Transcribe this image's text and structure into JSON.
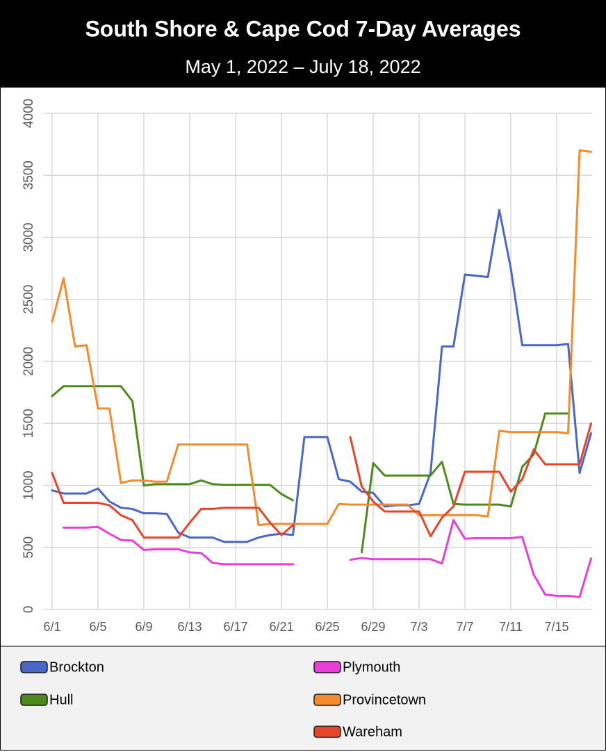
{
  "chart_data": {
    "type": "line",
    "title": "South Shore & Cape Cod 7-Day Averages",
    "subtitle": "May 1, 2022 – July 18, 2022",
    "categories": [
      "6/1",
      null,
      null,
      null,
      "6/5",
      null,
      null,
      null,
      "6/9",
      null,
      null,
      null,
      "6/13",
      null,
      null,
      null,
      "6/17",
      null,
      null,
      null,
      "6/21",
      null,
      null,
      null,
      "6/25",
      null,
      null,
      null,
      "6/29",
      null,
      null,
      null,
      "7/3",
      null,
      null,
      null,
      "7/7",
      null,
      null,
      null,
      "7/11",
      null,
      null,
      null,
      "7/15",
      null,
      null,
      null
    ],
    "ylim": [
      0,
      4000
    ],
    "yticks": [
      0,
      500,
      1000,
      1500,
      2000,
      2500,
      3000,
      3500,
      4000
    ],
    "grid": true,
    "series": [
      {
        "name": "Brockton",
        "color": "#4a66c6",
        "values": [
          960,
          935,
          935,
          935,
          975,
          870,
          820,
          810,
          775,
          775,
          770,
          620,
          580,
          580,
          580,
          545,
          545,
          545,
          580,
          600,
          610,
          600,
          1390,
          1390,
          1390,
          1050,
          1030,
          950,
          940,
          830,
          840,
          840,
          850,
          1100,
          2120,
          2120,
          2700,
          2690,
          2680,
          3220,
          2750,
          2130,
          2130,
          2130,
          2130,
          2140,
          1100,
          1420
        ]
      },
      {
        "name": "Hull",
        "color": "#4d8a1c",
        "values": [
          1720,
          1800,
          1800,
          1800,
          1800,
          1800,
          1800,
          1680,
          1000,
          1010,
          1010,
          1010,
          1010,
          1040,
          1010,
          1005,
          1005,
          1005,
          1005,
          1005,
          930,
          880,
          null,
          null,
          null,
          null,
          null,
          460,
          1180,
          1080,
          1080,
          1080,
          1080,
          1080,
          1190,
          850,
          845,
          845,
          845,
          845,
          830,
          1150,
          1250,
          1580,
          1580,
          1580,
          null,
          null
        ]
      },
      {
        "name": "Plymouth",
        "color": "#e83fd8",
        "values": [
          null,
          660,
          660,
          660,
          665,
          610,
          560,
          555,
          480,
          485,
          485,
          485,
          460,
          455,
          375,
          365,
          365,
          365,
          365,
          365,
          365,
          365,
          null,
          null,
          null,
          null,
          400,
          415,
          405,
          405,
          405,
          405,
          405,
          405,
          370,
          720,
          570,
          575,
          575,
          575,
          575,
          585,
          280,
          120,
          110,
          110,
          100,
          410
        ]
      },
      {
        "name": "Provincetown",
        "color": "#f58a2c",
        "values": [
          2320,
          2670,
          2120,
          2130,
          1620,
          1620,
          1020,
          1040,
          1040,
          1030,
          1030,
          1330,
          1330,
          1330,
          1330,
          1330,
          1330,
          1330,
          680,
          690,
          690,
          690,
          690,
          690,
          690,
          850,
          845,
          845,
          845,
          845,
          845,
          845,
          760,
          760,
          760,
          760,
          760,
          760,
          750,
          1440,
          1430,
          1430,
          1430,
          1430,
          1430,
          1420,
          3700,
          3690
        ]
      },
      {
        "name": "Wareham",
        "color": "#e8442a",
        "values": [
          1100,
          860,
          860,
          860,
          860,
          840,
          760,
          720,
          580,
          580,
          580,
          580,
          700,
          810,
          810,
          820,
          820,
          820,
          820,
          700,
          600,
          680,
          null,
          null,
          null,
          null,
          1390,
          990,
          870,
          790,
          790,
          790,
          790,
          590,
          740,
          830,
          1110,
          1110,
          1110,
          1110,
          950,
          1050,
          1290,
          1170,
          1170,
          1170,
          1170,
          1500
        ]
      }
    ]
  }
}
